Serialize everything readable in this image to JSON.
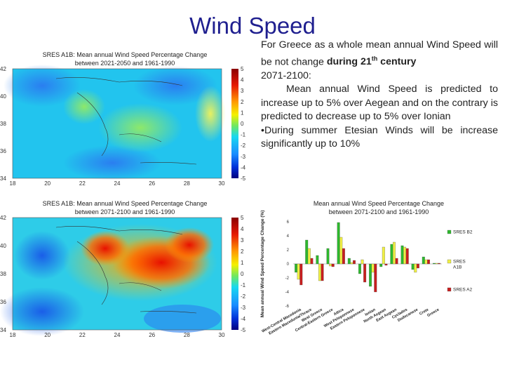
{
  "slide": {
    "title": "Wind Speed"
  },
  "map_top": {
    "caption_line1": "SRES A1B: Mean annual Wind Speed Percentage Change",
    "caption_line2": "between 2021-2050 and 1961-1990",
    "lat_ticks": [
      "42",
      "40",
      "38",
      "36",
      "34"
    ],
    "lon_ticks": [
      "18",
      "20",
      "22",
      "24",
      "26",
      "28",
      "30"
    ],
    "colorbar_ticks": [
      "5",
      "4",
      "3",
      "2",
      "1",
      "0",
      "-1",
      "-2",
      "-3",
      "-4",
      "-5"
    ]
  },
  "map_bottom": {
    "caption_line1": "SRES A1B: Mean annual Wind Speed Percentage Change",
    "caption_line2": "between 2071-2100 and 1961-1990",
    "lat_ticks": [
      "42",
      "40",
      "38",
      "36",
      "34"
    ],
    "lon_ticks": [
      "18",
      "20",
      "22",
      "24",
      "26",
      "28",
      "30"
    ],
    "colorbar_ticks": [
      "5",
      "4",
      "3",
      "2",
      "1",
      "0",
      "-1",
      "-2",
      "-3",
      "-4",
      "-5"
    ]
  },
  "text": {
    "p1_a": "For Greece as a whole mean annual Wind Speed will be not change ",
    "p1_b": "during 21",
    "p1_sup": "th",
    "p1_c": " century",
    "p2": "2071-2100:",
    "p3": "Mean annual Wind Speed is predicted to increase up to 5% over Aegean and on the contrary is predicted to decrease up to 5% over Ionian",
    "p4": "•During summer Etesian Winds will be increase significantly up to 10%"
  },
  "chart_data": {
    "type": "bar",
    "title_line1": "Mean annual Wind Speed Percentage Change",
    "title_line2": "between 2071-2100 and 1961-1990",
    "ylabel": "Mean annual Wind Speed Percentage Change (%)",
    "ylim": [
      -6,
      6
    ],
    "yticks": [
      6,
      4,
      2,
      0,
      -2,
      -4,
      -6
    ],
    "categories": [
      "West-Central Macedonia",
      "Eastern Macedonia/Thrace",
      "West Greece",
      "Central-Eastern Greece",
      "Attica",
      "West Peloponnese",
      "Eastern Peloponnese",
      "Ionian",
      "North Aegean",
      "East Aegean",
      "Cyclades",
      "Dodecanese",
      "Crete",
      "Greece"
    ],
    "series": [
      {
        "name": "SRES B2",
        "color": "#2db82d",
        "values": [
          -1.2,
          3.4,
          1.2,
          2.2,
          5.9,
          0.8,
          -1.4,
          -3.2,
          -0.4,
          2.8,
          2.6,
          -0.8,
          1.0,
          0.1
        ]
      },
      {
        "name": "SRES A1B",
        "color": "#f0f044",
        "values": [
          -2.2,
          2.2,
          -2.4,
          -0.3,
          3.8,
          0.2,
          0.6,
          -1.2,
          2.4,
          3.1,
          2.4,
          -1.2,
          0.6,
          0.1
        ]
      },
      {
        "name": "SRES A2",
        "color": "#c81e1e",
        "values": [
          -3.0,
          0.8,
          -2.4,
          -0.4,
          2.2,
          0.5,
          -2.6,
          -4.0,
          -0.2,
          0.8,
          2.2,
          -0.6,
          0.6,
          0.1
        ]
      }
    ]
  }
}
